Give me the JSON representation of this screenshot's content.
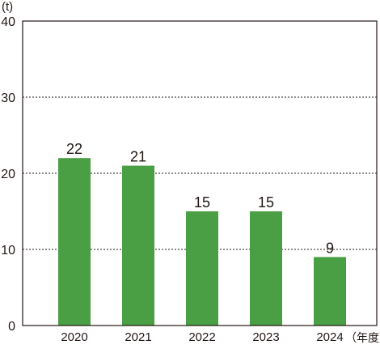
{
  "chart_data": {
    "type": "bar",
    "unit_label": "(t)",
    "x_unit_label": "（年度）",
    "categories": [
      "2020",
      "2021",
      "2022",
      "2023",
      "2024"
    ],
    "values": [
      22,
      21,
      15,
      15,
      9
    ],
    "data_labels": [
      "22",
      "21",
      "15",
      "15",
      "9"
    ],
    "y_ticks": [
      0,
      10,
      20,
      30,
      40
    ],
    "ylim": [
      0,
      40
    ],
    "grid": "dashed horizontal at 10, 20, 30",
    "bar_color": "#4a9e44",
    "axis_color": "#231815",
    "grid_color": "#231815"
  }
}
